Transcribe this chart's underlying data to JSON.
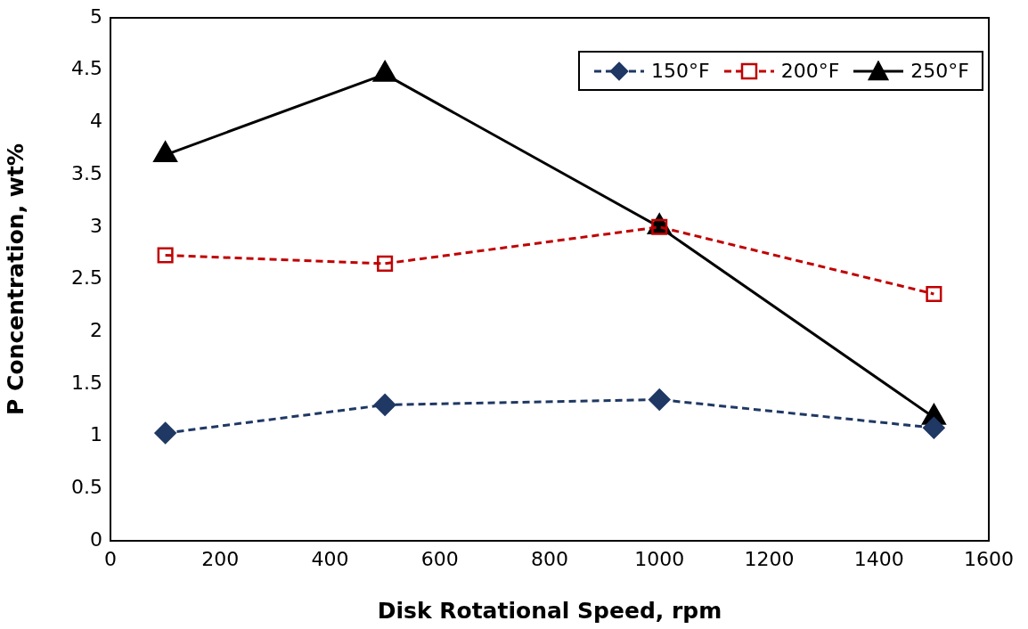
{
  "chart_data": {
    "type": "line",
    "xlabel": "Disk Rotational Speed, rpm",
    "ylabel": "P Concentration, wt%",
    "x": [
      100,
      500,
      1000,
      1500
    ],
    "series": [
      {
        "name": "150°F",
        "color": "#1f3864",
        "marker": "diamond",
        "line_style": "dashed",
        "values": [
          1.03,
          1.3,
          1.35,
          1.08
        ]
      },
      {
        "name": "200°F",
        "color": "#c00000",
        "marker": "square",
        "line_style": "dashed",
        "values": [
          2.73,
          2.65,
          3.0,
          2.36
        ]
      },
      {
        "name": "250°F",
        "color": "#000000",
        "marker": "triangle",
        "line_style": "solid",
        "values": [
          3.69,
          4.46,
          3.0,
          1.18
        ]
      }
    ],
    "xlim": [
      0,
      1600
    ],
    "xticks": [
      0,
      200,
      400,
      600,
      800,
      1000,
      1200,
      1400,
      1600
    ],
    "ylim": [
      0,
      5
    ],
    "yticks": [
      0,
      0.5,
      1,
      1.5,
      2,
      2.5,
      3,
      3.5,
      4,
      4.5,
      5
    ],
    "grid": false,
    "legend": "top right"
  }
}
